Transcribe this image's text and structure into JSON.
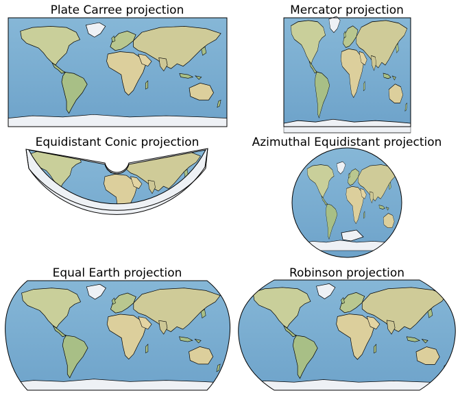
{
  "figure": {
    "panels": [
      {
        "id": "plate-carree",
        "title": "Plate Carree projection"
      },
      {
        "id": "mercator",
        "title": "Mercator projection"
      },
      {
        "id": "equidistant-conic",
        "title": "Equidistant Conic projection"
      },
      {
        "id": "azimuthal-equidistant",
        "title": "Azimuthal Equidistant projection"
      },
      {
        "id": "equal-earth",
        "title": "Equal Earth projection"
      },
      {
        "id": "robinson",
        "title": "Robinson projection"
      }
    ]
  },
  "colors": {
    "ocean": "#7fb1d3",
    "ocean_deep": "#6fa4cb",
    "land": "#d9cf9e",
    "land_green": "#a8bf86",
    "ice": "#eef1f5",
    "coast": "#000000",
    "frame": "#000000"
  }
}
